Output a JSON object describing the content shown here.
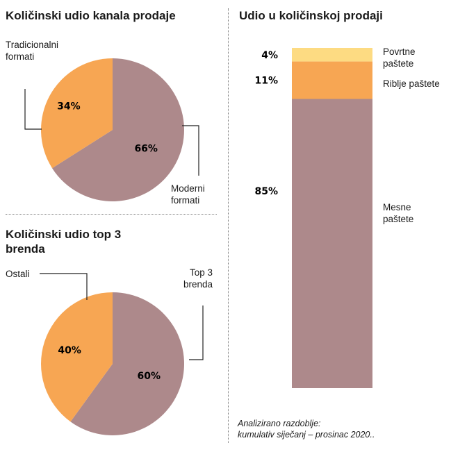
{
  "chart_data": [
    {
      "type": "pie",
      "title": "Količinski udio kanala prodaje",
      "slices": [
        {
          "label": "Moderni formati",
          "value": 66,
          "display": "66%",
          "color": "#ad898b"
        },
        {
          "label": "Tradicionalni formati",
          "value": 34,
          "display": "34%",
          "color": "#f7a653"
        }
      ]
    },
    {
      "type": "pie",
      "title": "Količinski udio top 3 brenda",
      "slices": [
        {
          "label": "Top 3 brenda",
          "value": 60,
          "display": "60%",
          "color": "#ad898b"
        },
        {
          "label": "Ostali",
          "value": 40,
          "display": "40%",
          "color": "#f7a653"
        }
      ]
    },
    {
      "type": "bar",
      "subtype": "stacked-100",
      "title": "Udio u količinskoj prodaji",
      "segments": [
        {
          "label": "Povrtne paštete",
          "value": 4,
          "display": "4%",
          "color": "#fddb82"
        },
        {
          "label": "Riblje paštete",
          "value": 11,
          "display": "11%",
          "color": "#f7a653"
        },
        {
          "label": "Mesne paštete",
          "value": 85,
          "display": "85%",
          "color": "#ad898b"
        }
      ]
    }
  ],
  "labels": {
    "pie1_left_line1": "Tradicionalni",
    "pie1_left_line2": "formati",
    "pie1_right_line1": "Moderni",
    "pie1_right_line2": "formati",
    "pie2_title_line1": "Količinski udio top 3",
    "pie2_title_line2": "brenda",
    "pie2_left": "Ostali",
    "pie2_right_line1": "Top 3",
    "pie2_right_line2": "brenda",
    "bar_seg1_line1": "Povrtne",
    "bar_seg1_line2": "paštete",
    "bar_seg2": "Riblje paštete",
    "bar_seg3_line1": "Mesne",
    "bar_seg3_line2": "paštete"
  },
  "footnote": {
    "line1": "Analizirano razdoblje:",
    "line2": "kumulativ siječanj – prosinac 2020.."
  }
}
